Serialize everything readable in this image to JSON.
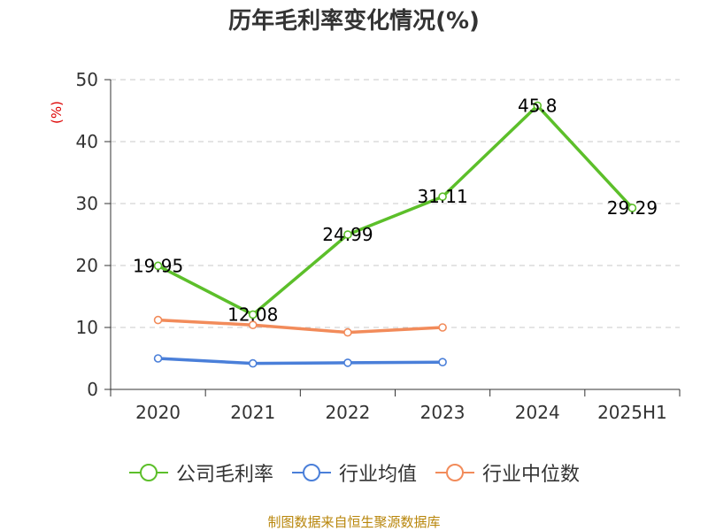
{
  "chart_data": {
    "type": "line",
    "title": "历年毛利率变化情况(%)",
    "ylabel": "(%)",
    "xlabel": "",
    "categories": [
      "2020",
      "2021",
      "2022",
      "2023",
      "2024",
      "2025H1"
    ],
    "ylim": [
      0,
      50
    ],
    "yticks": [
      0,
      10,
      20,
      30,
      40,
      50
    ],
    "grid": true,
    "legend_position": "bottom",
    "series": [
      {
        "name": "公司毛利率",
        "color": "#5cbf2a",
        "values": [
          19.95,
          12.08,
          24.99,
          31.11,
          45.8,
          29.29
        ],
        "labels": [
          "19.95",
          "12.08",
          "24.99",
          "31.11",
          "45.8",
          "29.29"
        ]
      },
      {
        "name": "行业均值",
        "color": "#4a7fd9",
        "values": [
          5.0,
          4.2,
          4.3,
          4.4,
          null,
          null
        ]
      },
      {
        "name": "行业中位数",
        "color": "#f28b5a",
        "values": [
          11.2,
          10.4,
          9.2,
          10.0,
          null,
          null
        ]
      }
    ]
  },
  "source": "制图数据来自恒生聚源数据库"
}
